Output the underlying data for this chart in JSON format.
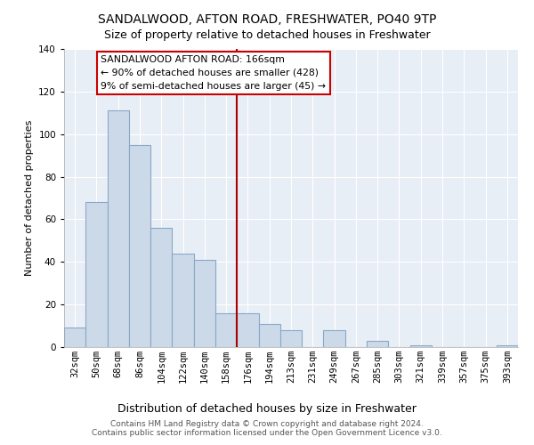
{
  "title": "SANDALWOOD, AFTON ROAD, FRESHWATER, PO40 9TP",
  "subtitle": "Size of property relative to detached houses in Freshwater",
  "xlabel": "Distribution of detached houses by size in Freshwater",
  "ylabel": "Number of detached properties",
  "bar_labels": [
    "32sqm",
    "50sqm",
    "68sqm",
    "86sqm",
    "104sqm",
    "122sqm",
    "140sqm",
    "158sqm",
    "176sqm",
    "194sqm",
    "213sqm",
    "231sqm",
    "249sqm",
    "267sqm",
    "285sqm",
    "303sqm",
    "321sqm",
    "339sqm",
    "357sqm",
    "375sqm",
    "393sqm"
  ],
  "bar_values": [
    9,
    68,
    111,
    95,
    56,
    44,
    41,
    16,
    16,
    11,
    8,
    0,
    8,
    0,
    3,
    0,
    1,
    0,
    0,
    0,
    1
  ],
  "bar_color": "#ccd9e8",
  "bar_edge_color": "#89a8c8",
  "ylim": [
    0,
    140
  ],
  "yticks": [
    0,
    20,
    40,
    60,
    80,
    100,
    120,
    140
  ],
  "vline_x_idx": 7.5,
  "vline_color": "#aa0000",
  "annotation_title": "SANDALWOOD AFTON ROAD: 166sqm",
  "annotation_line1": "← 90% of detached houses are smaller (428)",
  "annotation_line2": "9% of semi-detached houses are larger (45) →",
  "annotation_box_color": "#cc0000",
  "footnote1": "Contains HM Land Registry data © Crown copyright and database right 2024.",
  "footnote2": "Contains public sector information licensed under the Open Government Licence v3.0.",
  "bg_color": "#e8eef5",
  "grid_color": "#ffffff",
  "title_fontsize": 10,
  "subtitle_fontsize": 9,
  "ylabel_fontsize": 8,
  "xlabel_fontsize": 9,
  "tick_fontsize": 7.5,
  "footnote_fontsize": 6.5
}
